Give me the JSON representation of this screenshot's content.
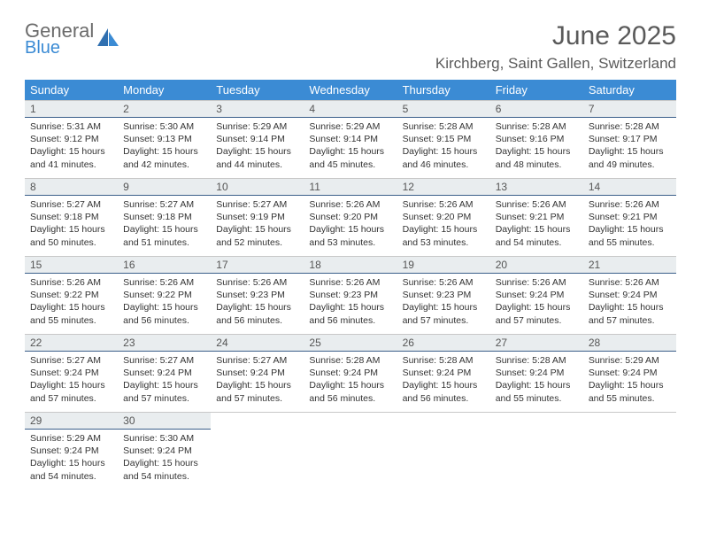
{
  "logo": {
    "general": "General",
    "blue": "Blue"
  },
  "title": "June 2025",
  "location": "Kirchberg, Saint Gallen, Switzerland",
  "colors": {
    "header_bg": "#3b8bd4",
    "header_text": "#ffffff",
    "day_header_bg": "#e9edef",
    "day_header_border": "#3b5f8a",
    "cell_border": "#c8c8c8",
    "text": "#333333",
    "title_text": "#5a5a5a",
    "logo_gray": "#6b6b6b",
    "logo_blue": "#3b8bd4"
  },
  "weekdays": [
    "Sunday",
    "Monday",
    "Tuesday",
    "Wednesday",
    "Thursday",
    "Friday",
    "Saturday"
  ],
  "labels": {
    "sunrise": "Sunrise:",
    "sunset": "Sunset:",
    "daylight": "Daylight:"
  },
  "weeks": [
    [
      {
        "n": "1",
        "sr": "5:31 AM",
        "ss": "9:12 PM",
        "dl": "15 hours and 41 minutes."
      },
      {
        "n": "2",
        "sr": "5:30 AM",
        "ss": "9:13 PM",
        "dl": "15 hours and 42 minutes."
      },
      {
        "n": "3",
        "sr": "5:29 AM",
        "ss": "9:14 PM",
        "dl": "15 hours and 44 minutes."
      },
      {
        "n": "4",
        "sr": "5:29 AM",
        "ss": "9:14 PM",
        "dl": "15 hours and 45 minutes."
      },
      {
        "n": "5",
        "sr": "5:28 AM",
        "ss": "9:15 PM",
        "dl": "15 hours and 46 minutes."
      },
      {
        "n": "6",
        "sr": "5:28 AM",
        "ss": "9:16 PM",
        "dl": "15 hours and 48 minutes."
      },
      {
        "n": "7",
        "sr": "5:28 AM",
        "ss": "9:17 PM",
        "dl": "15 hours and 49 minutes."
      }
    ],
    [
      {
        "n": "8",
        "sr": "5:27 AM",
        "ss": "9:18 PM",
        "dl": "15 hours and 50 minutes."
      },
      {
        "n": "9",
        "sr": "5:27 AM",
        "ss": "9:18 PM",
        "dl": "15 hours and 51 minutes."
      },
      {
        "n": "10",
        "sr": "5:27 AM",
        "ss": "9:19 PM",
        "dl": "15 hours and 52 minutes."
      },
      {
        "n": "11",
        "sr": "5:26 AM",
        "ss": "9:20 PM",
        "dl": "15 hours and 53 minutes."
      },
      {
        "n": "12",
        "sr": "5:26 AM",
        "ss": "9:20 PM",
        "dl": "15 hours and 53 minutes."
      },
      {
        "n": "13",
        "sr": "5:26 AM",
        "ss": "9:21 PM",
        "dl": "15 hours and 54 minutes."
      },
      {
        "n": "14",
        "sr": "5:26 AM",
        "ss": "9:21 PM",
        "dl": "15 hours and 55 minutes."
      }
    ],
    [
      {
        "n": "15",
        "sr": "5:26 AM",
        "ss": "9:22 PM",
        "dl": "15 hours and 55 minutes."
      },
      {
        "n": "16",
        "sr": "5:26 AM",
        "ss": "9:22 PM",
        "dl": "15 hours and 56 minutes."
      },
      {
        "n": "17",
        "sr": "5:26 AM",
        "ss": "9:23 PM",
        "dl": "15 hours and 56 minutes."
      },
      {
        "n": "18",
        "sr": "5:26 AM",
        "ss": "9:23 PM",
        "dl": "15 hours and 56 minutes."
      },
      {
        "n": "19",
        "sr": "5:26 AM",
        "ss": "9:23 PM",
        "dl": "15 hours and 57 minutes."
      },
      {
        "n": "20",
        "sr": "5:26 AM",
        "ss": "9:24 PM",
        "dl": "15 hours and 57 minutes."
      },
      {
        "n": "21",
        "sr": "5:26 AM",
        "ss": "9:24 PM",
        "dl": "15 hours and 57 minutes."
      }
    ],
    [
      {
        "n": "22",
        "sr": "5:27 AM",
        "ss": "9:24 PM",
        "dl": "15 hours and 57 minutes."
      },
      {
        "n": "23",
        "sr": "5:27 AM",
        "ss": "9:24 PM",
        "dl": "15 hours and 57 minutes."
      },
      {
        "n": "24",
        "sr": "5:27 AM",
        "ss": "9:24 PM",
        "dl": "15 hours and 57 minutes."
      },
      {
        "n": "25",
        "sr": "5:28 AM",
        "ss": "9:24 PM",
        "dl": "15 hours and 56 minutes."
      },
      {
        "n": "26",
        "sr": "5:28 AM",
        "ss": "9:24 PM",
        "dl": "15 hours and 56 minutes."
      },
      {
        "n": "27",
        "sr": "5:28 AM",
        "ss": "9:24 PM",
        "dl": "15 hours and 55 minutes."
      },
      {
        "n": "28",
        "sr": "5:29 AM",
        "ss": "9:24 PM",
        "dl": "15 hours and 55 minutes."
      }
    ],
    [
      {
        "n": "29",
        "sr": "5:29 AM",
        "ss": "9:24 PM",
        "dl": "15 hours and 54 minutes."
      },
      {
        "n": "30",
        "sr": "5:30 AM",
        "ss": "9:24 PM",
        "dl": "15 hours and 54 minutes."
      },
      null,
      null,
      null,
      null,
      null
    ]
  ]
}
